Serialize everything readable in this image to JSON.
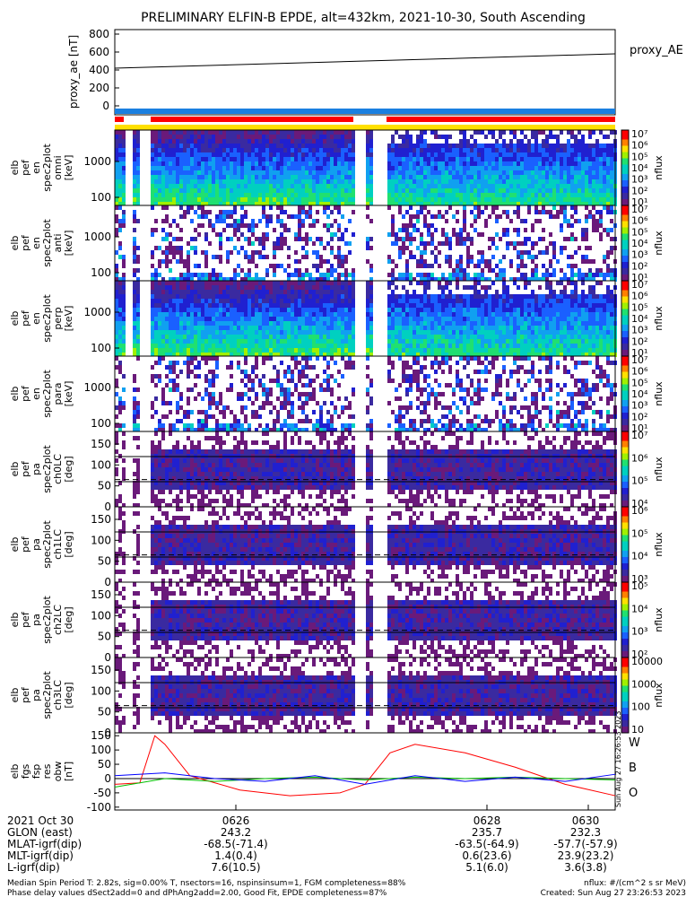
{
  "title": "PRELIMINARY ELFIN-B EPDE, alt=432km, 2021-10-30, South Ascending",
  "colors": {
    "ae_line": "#000000",
    "w": "#ff0000",
    "b": "#00c000",
    "o": "#0000ff",
    "bar_blue": "#1a7fe0",
    "bar_red": "#ff0000",
    "bar_yellow": "#ffe000"
  },
  "ae_panel": {
    "ylabel": "proxy_ae\n[nT]",
    "ticks": [
      "800",
      "600",
      "400",
      "200",
      "0"
    ],
    "legend": "proxy_AE",
    "ylim": [
      -100,
      850
    ]
  },
  "chart_data": [
    {
      "type": "line",
      "name": "proxy_ae",
      "x": [
        "0624.6",
        "0631.3"
      ],
      "y": [
        420,
        580
      ],
      "ylim": [
        -100,
        850
      ]
    },
    {
      "type": "heatmap",
      "name": "pef_en_spec2plot_omni",
      "ylabel": "elb\npef\nen\nspec2plot\nomni\n[keV]",
      "yticks": [
        "1000",
        "100"
      ],
      "zticks": [
        "10⁷",
        "10⁶",
        "10⁵",
        "10⁴",
        "10³",
        "10²",
        "10¹"
      ],
      "zunit": "nflux"
    },
    {
      "type": "heatmap",
      "name": "pef_en_spec2plot_anti",
      "ylabel": "elb\npef\nen\nspec2plot\nanti\n[keV]",
      "yticks": [
        "1000",
        "100"
      ],
      "zticks": [
        "10⁷",
        "10⁶",
        "10⁵",
        "10⁴",
        "10³",
        "10²",
        "10¹"
      ],
      "zunit": "nflux"
    },
    {
      "type": "heatmap",
      "name": "pef_en_spec2plot_perp",
      "ylabel": "elb\npef\nen\nspec2plot\nperp\n[keV]",
      "yticks": [
        "1000",
        "100"
      ],
      "zticks": [
        "10⁷",
        "10⁶",
        "10⁵",
        "10⁴",
        "10³",
        "10²",
        "10¹"
      ],
      "zunit": "nflux"
    },
    {
      "type": "heatmap",
      "name": "pef_en_spec2plot_para",
      "ylabel": "elb\npef\nen\nspec2plot\npara\n[keV]",
      "yticks": [
        "1000",
        "100"
      ],
      "zticks": [
        "10⁷",
        "10⁶",
        "10⁵",
        "10⁴",
        "10³",
        "10²",
        "10¹"
      ],
      "zunit": "nflux"
    },
    {
      "type": "heatmap",
      "name": "pef_pa_spec2plot_ch0LC",
      "ylabel": "elb\npef\npa\nspec2plot\nch0LC\n[deg]",
      "yticks": [
        "150",
        "100",
        "50",
        "0"
      ],
      "zticks": [
        "10⁷",
        "10⁶",
        "10⁵",
        "10⁴"
      ],
      "zunit": "nflux"
    },
    {
      "type": "heatmap",
      "name": "pef_pa_spec2plot_ch1LC",
      "ylabel": "elb\npef\npa\nspec2plot\nch1LC\n[deg]",
      "yticks": [
        "150",
        "100",
        "50",
        "0"
      ],
      "zticks": [
        "10⁶",
        "10⁵",
        "10⁴",
        "10³"
      ],
      "zunit": "nflux"
    },
    {
      "type": "heatmap",
      "name": "pef_pa_spec2plot_ch2LC",
      "ylabel": "elb\npef\npa\nspec2plot\nch2LC\n[deg]",
      "yticks": [
        "150",
        "100",
        "50",
        "0"
      ],
      "zticks": [
        "10⁵",
        "10⁴",
        "10³",
        "10²"
      ],
      "zunit": "nflux"
    },
    {
      "type": "heatmap",
      "name": "pef_pa_spec2plot_ch3LC",
      "ylabel": "elb\npef\npa\nspec2plot\nch3LC\n[deg]",
      "yticks": [
        "150",
        "100",
        "50",
        "0"
      ],
      "zticks": [
        "10000",
        "1000",
        "100",
        "10"
      ],
      "zunit": "nflux"
    },
    {
      "type": "line",
      "name": "fgs_fsp_res_obw",
      "ylabel": "elb\nfgs\nfsp\nres\nobw\n[nT]",
      "yticks": [
        "150",
        "100",
        "50",
        "0",
        "-50",
        "-100"
      ],
      "ylim": [
        -110,
        160
      ],
      "series": [
        {
          "name": "W",
          "color": "#ff0000",
          "x": [
            0,
            0.05,
            0.08,
            0.1,
            0.15,
            0.25,
            0.35,
            0.45,
            0.5,
            0.55,
            0.6,
            0.7,
            0.8,
            0.9,
            1.0
          ],
          "y": [
            -20,
            -15,
            150,
            120,
            10,
            -40,
            -60,
            -50,
            -20,
            90,
            120,
            90,
            40,
            -20,
            -60
          ]
        },
        {
          "name": "B",
          "color": "#00c000",
          "x": [
            0,
            0.1,
            0.2,
            0.3,
            0.4,
            0.5,
            0.6,
            0.7,
            0.8,
            0.9,
            1.0
          ],
          "y": [
            -30,
            0,
            -10,
            0,
            5,
            -5,
            5,
            0,
            5,
            0,
            -5
          ]
        },
        {
          "name": "O",
          "color": "#0000ff",
          "x": [
            0,
            0.1,
            0.2,
            0.3,
            0.4,
            0.5,
            0.6,
            0.7,
            0.8,
            0.9,
            1.0
          ],
          "y": [
            10,
            20,
            0,
            -10,
            10,
            -20,
            10,
            -10,
            5,
            -10,
            15
          ]
        }
      ]
    }
  ],
  "created_vertical": "Sun Aug 27 16:26:53 2023",
  "footer": {
    "rows": [
      {
        "label": "2021 Oct 30",
        "v1": "0626",
        "v2": "0628",
        "v3": "0630"
      },
      {
        "label": "GLON (east)",
        "v1": "243.2",
        "v2": "235.7",
        "v3": "232.3"
      },
      {
        "label": "MLAT-igrf(dip)",
        "v1": "-68.5(-71.4)",
        "v2": "-63.5(-64.9)",
        "v3": "-57.7(-57.9)"
      },
      {
        "label": "MLT-igrf(dip)",
        "v1": "1.4(0.4)",
        "v2": "0.6(23.6)",
        "v3": "23.9(23.2)"
      },
      {
        "label": "L-igrf(dip)",
        "v1": "7.6(10.5)",
        "v2": "5.1(6.0)",
        "v3": "3.6(3.8)"
      }
    ],
    "note1": "Median Spin Period T: 2.82s, sig=0.00% T, nsectors=16, nspinsinsum=1, FGM completeness=88%",
    "note2": "Phase delay values dSect2add=0 and dPhAng2add=2.00, Good Fit, EPDE completeness=87%",
    "units": "nflux: #/(cm^2 s sr MeV)",
    "created": "Created: Sun Aug 27 23:26:53 2023"
  }
}
